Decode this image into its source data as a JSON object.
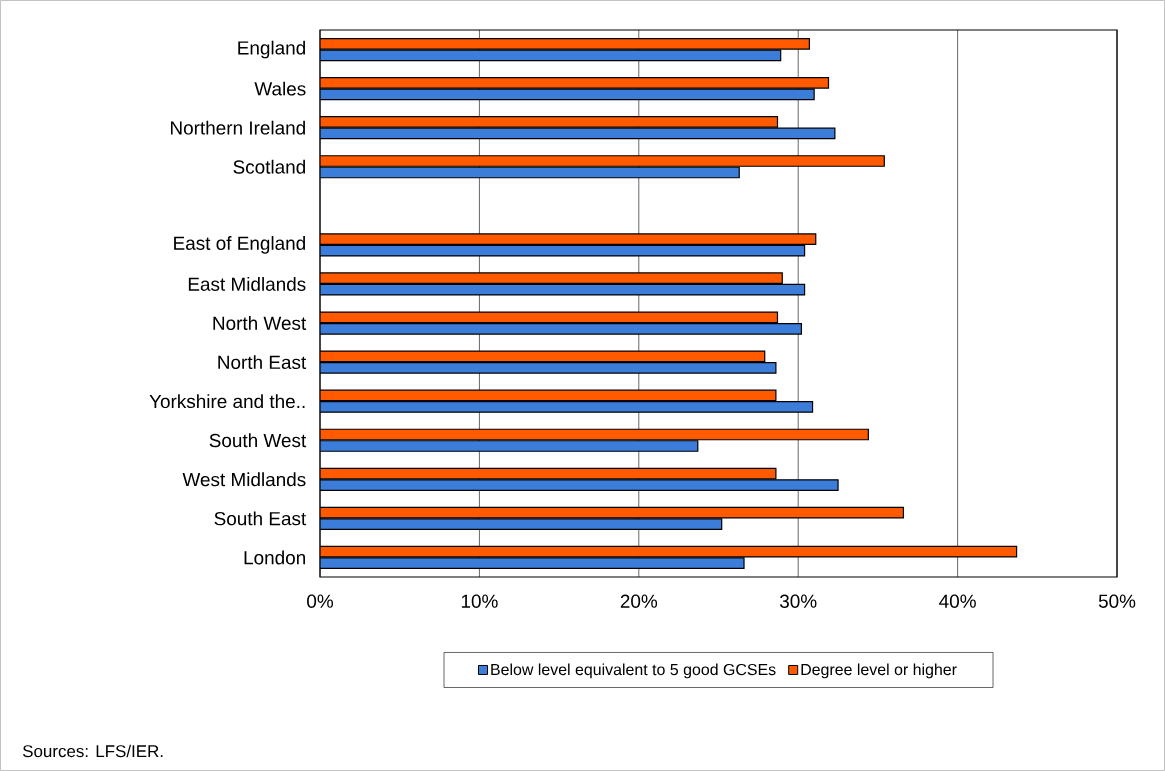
{
  "chart_data": {
    "type": "bar",
    "orientation": "horizontal",
    "categories": [
      "England",
      "Wales",
      "Northern Ireland",
      "Scotland",
      null,
      "East of England",
      "East Midlands",
      "North West",
      "North East",
      "Yorkshire and the..",
      "South West",
      "West Midlands",
      "South East",
      "London"
    ],
    "series": [
      {
        "name": "Below level equivalent to 5 good GCSEs",
        "color": "#3c7dd9",
        "values": [
          28.9,
          31.0,
          32.3,
          26.3,
          null,
          30.4,
          30.4,
          30.2,
          28.6,
          30.9,
          23.7,
          32.5,
          25.2,
          26.6
        ]
      },
      {
        "name": "Degree level or higher",
        "color": "#ff5a00",
        "values": [
          30.7,
          31.9,
          28.7,
          35.4,
          null,
          31.1,
          29.0,
          28.7,
          27.9,
          28.6,
          34.4,
          28.6,
          36.6,
          43.7
        ]
      }
    ],
    "xlim": [
      0,
      50
    ],
    "xticks": [
      {
        "value": 0,
        "label": "0%"
      },
      {
        "value": 10,
        "label": "10%"
      },
      {
        "value": 20,
        "label": "20%"
      },
      {
        "value": 30,
        "label": "30%"
      },
      {
        "value": 40,
        "label": "40%"
      },
      {
        "value": 50,
        "label": "50%"
      }
    ],
    "grid": "x",
    "legend": "bottom",
    "annotations": [
      "Sources:  LFS/IER."
    ]
  }
}
